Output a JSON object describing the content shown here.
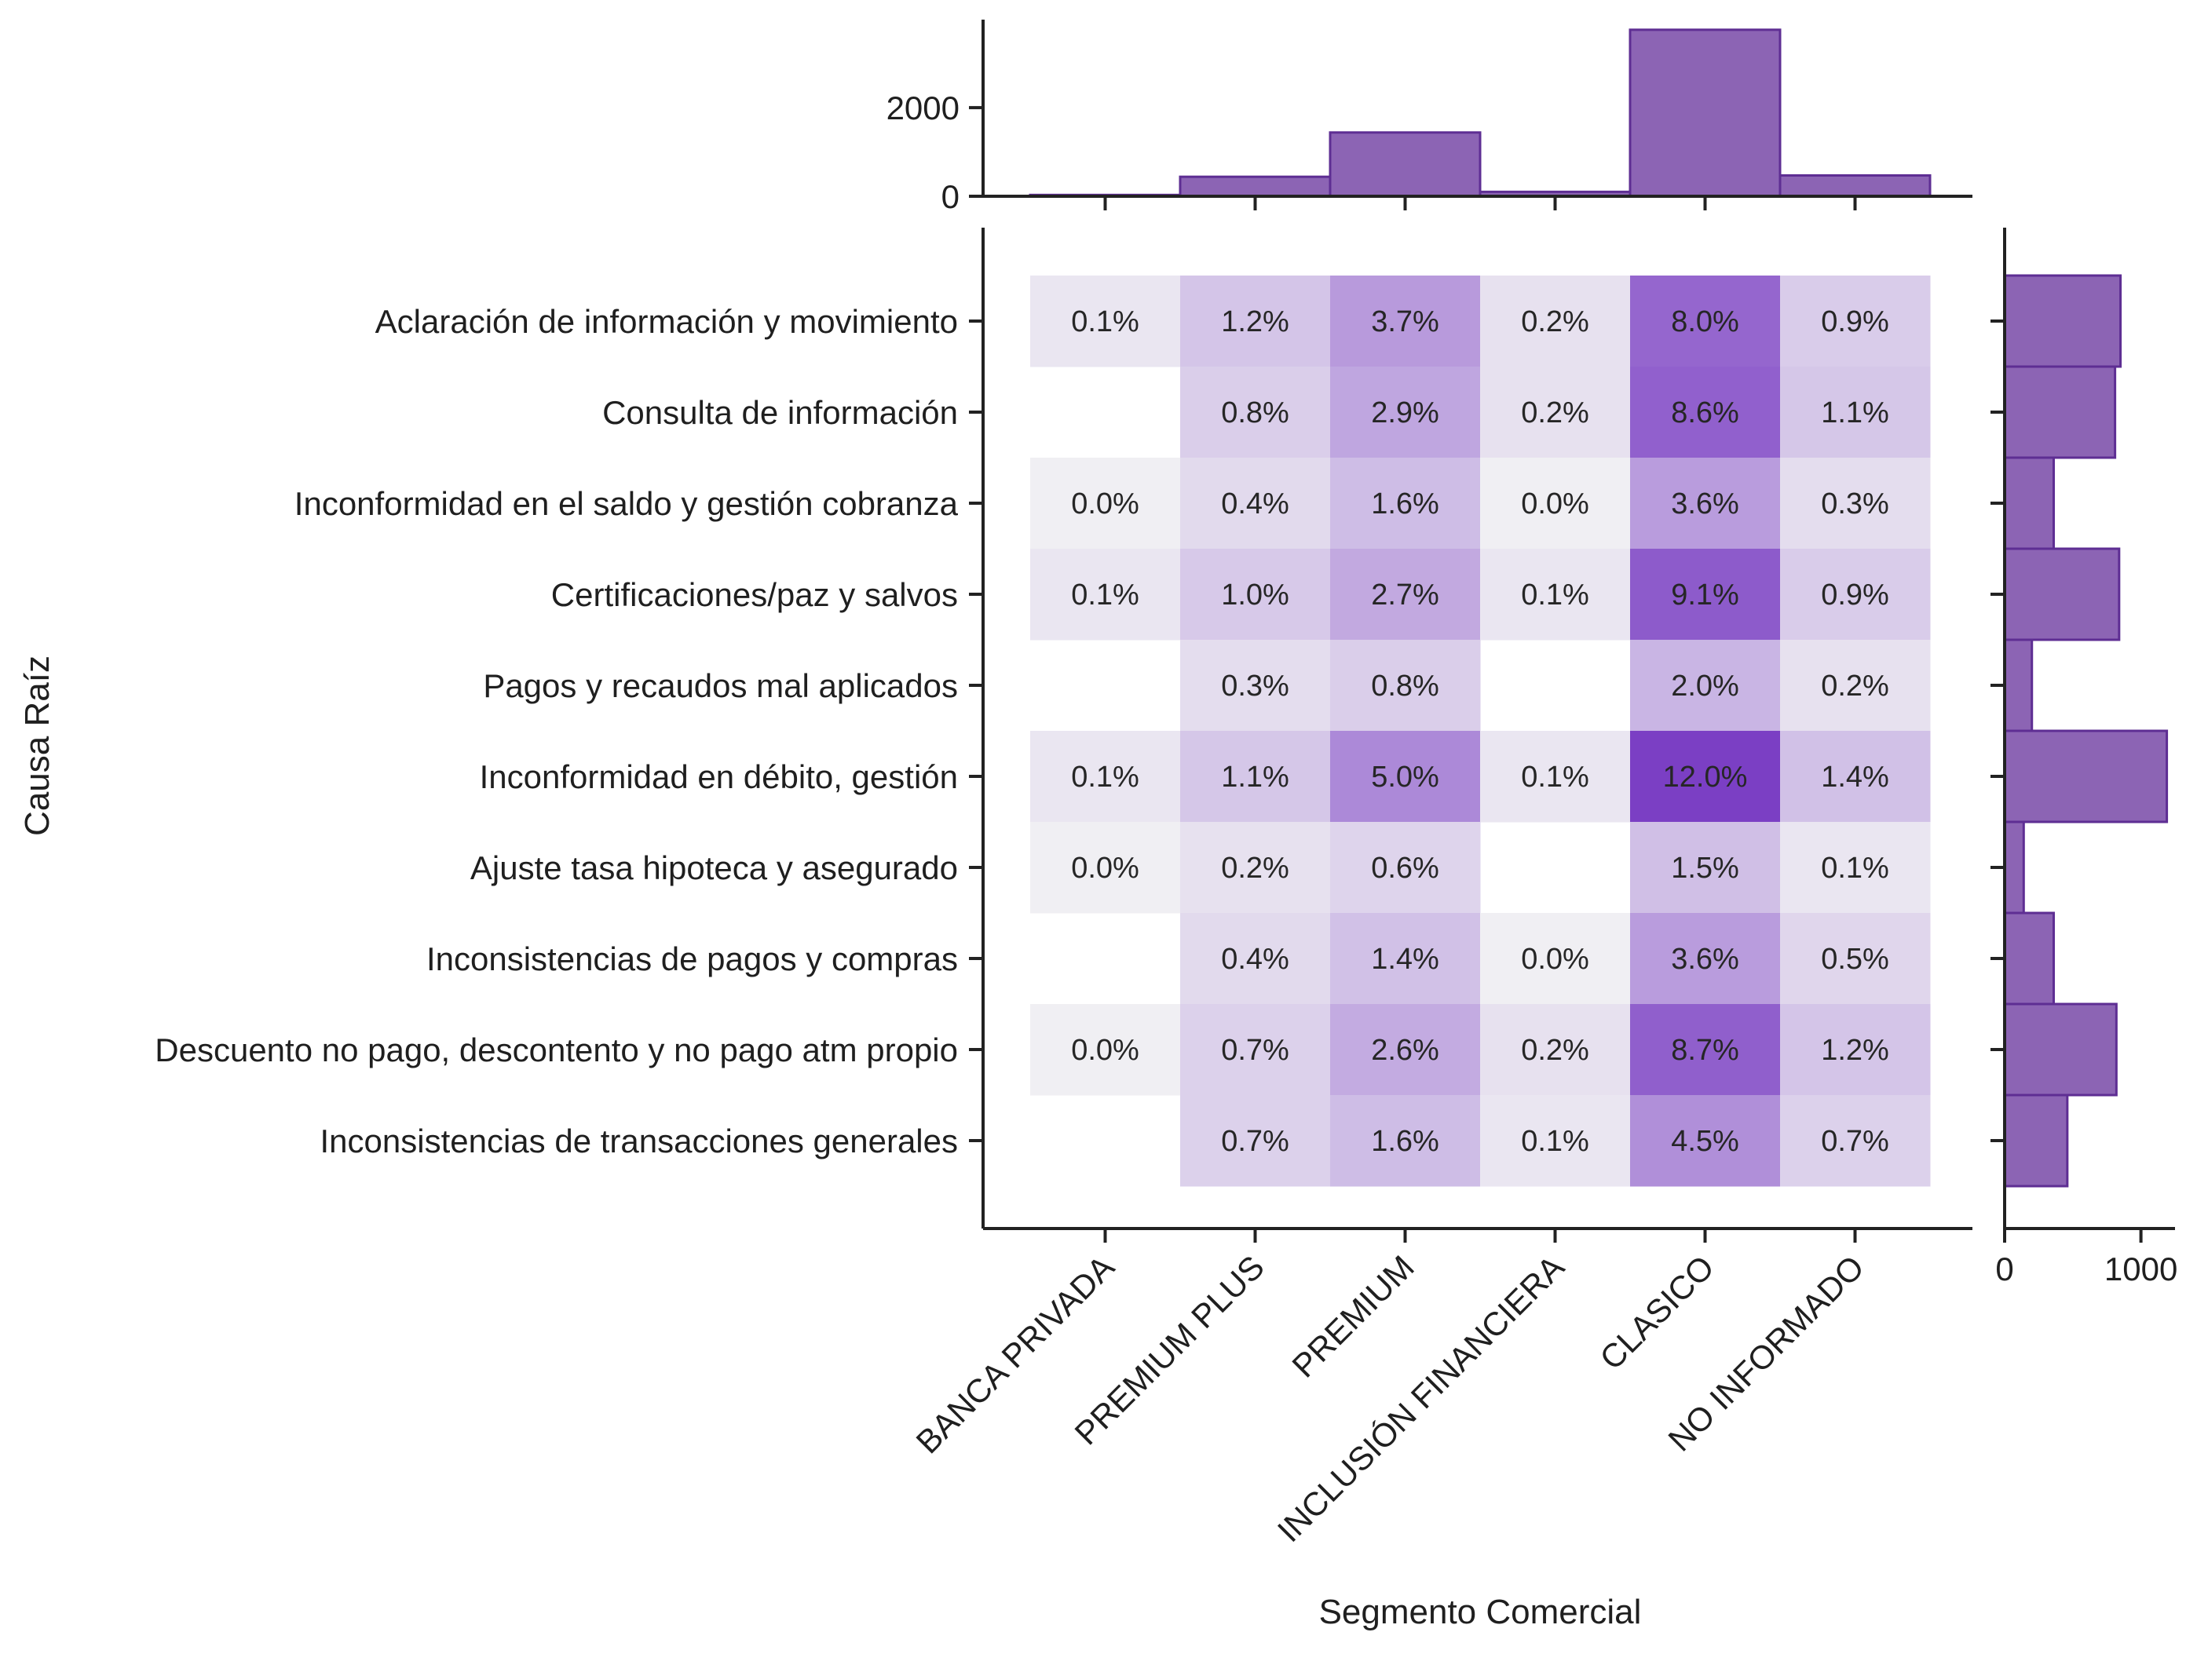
{
  "chart_data": {
    "type": "heatmap",
    "title": "",
    "xlabel": "Segmento Comercial",
    "ylabel": "Causa Raíz",
    "x_categories": [
      "BANCA PRIVADA",
      "PREMIUM PLUS",
      "PREMIUM",
      "INCLUSIÓN FINANCIERA",
      "CLASICO",
      "NO INFORMADO"
    ],
    "y_categories": [
      "Aclaración de información y movimiento",
      "Consulta de información",
      "Inconformidad en el saldo y gestión cobranza",
      "Certificaciones/paz y salvos",
      "Pagos y recaudos mal aplicados",
      "Inconformidad en débito, gestión ",
      "Ajuste tasa hipoteca y asegurado",
      "Inconsistencias de pagos y compras",
      "Descuento no pago, descontento y no pago atm propio",
      "Inconsistencias de transacciones generales"
    ],
    "values": [
      [
        0.1,
        1.2,
        3.7,
        0.2,
        8.0,
        0.9
      ],
      [
        null,
        0.8,
        2.9,
        0.2,
        8.6,
        1.1
      ],
      [
        0.0,
        0.4,
        1.6,
        0.0,
        3.6,
        0.3
      ],
      [
        0.1,
        1.0,
        2.7,
        0.1,
        9.1,
        0.9
      ],
      [
        null,
        0.3,
        0.8,
        null,
        2.0,
        0.2
      ],
      [
        0.1,
        1.1,
        5.0,
        0.1,
        12.0,
        1.4
      ],
      [
        0.0,
        0.2,
        0.6,
        null,
        1.5,
        0.1
      ],
      [
        null,
        0.4,
        1.4,
        0.0,
        3.6,
        0.5
      ],
      [
        0.0,
        0.7,
        2.6,
        0.2,
        8.7,
        1.2
      ],
      [
        null,
        0.7,
        1.6,
        0.1,
        4.5,
        0.7
      ]
    ],
    "cell_labels": [
      [
        "0.1%",
        "1.2%",
        "3.7%",
        "0.2%",
        "8.0%",
        "0.9%"
      ],
      [
        "",
        "0.8%",
        "2.9%",
        "0.2%",
        "8.6%",
        "1.1%"
      ],
      [
        "0.0%",
        "0.4%",
        "1.6%",
        "0.0%",
        "3.6%",
        "0.3%"
      ],
      [
        "0.1%",
        "1.0%",
        "2.7%",
        "0.1%",
        "9.1%",
        "0.9%"
      ],
      [
        "",
        "0.3%",
        "0.8%",
        "",
        "2.0%",
        "0.2%"
      ],
      [
        "0.1%",
        "1.1%",
        "5.0%",
        "0.1%",
        "12.0%",
        "1.4%"
      ],
      [
        "0.0%",
        "0.2%",
        "0.6%",
        "",
        "1.5%",
        "0.1%"
      ],
      [
        "",
        "0.4%",
        "1.4%",
        "0.0%",
        "3.6%",
        "0.5%"
      ],
      [
        "0.0%",
        "0.7%",
        "2.6%",
        "0.2%",
        "8.7%",
        "1.2%"
      ],
      [
        "",
        "0.7%",
        "1.6%",
        "0.1%",
        "4.5%",
        "0.7%"
      ]
    ],
    "color_range": [
      0,
      12.0
    ],
    "colors": {
      "low": "#f0eff3",
      "high": "#7b3fc4",
      "hist_fill": "#8c64b4",
      "hist_edge": "#5e2e93"
    },
    "top_histogram": {
      "values": [
        30,
        440,
        1440,
        100,
        3760,
        470
      ],
      "yticks": [
        0,
        2000
      ],
      "ylim": [
        0,
        3900
      ]
    },
    "right_histogram": {
      "values": [
        850,
        810,
        360,
        840,
        200,
        1190,
        140,
        360,
        820,
        460
      ],
      "xticks": [
        0,
        1000
      ],
      "xlim": [
        0,
        1250
      ]
    }
  }
}
